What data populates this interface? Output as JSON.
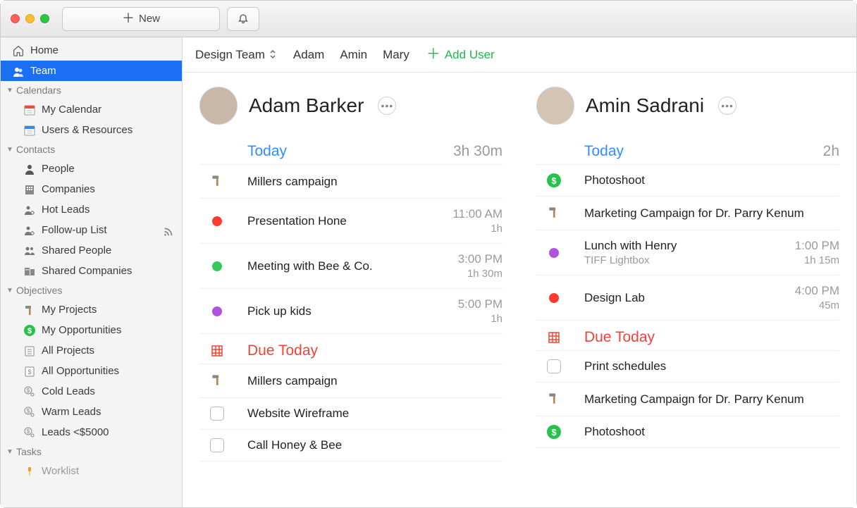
{
  "toolbar": {
    "new_label": "New",
    "bell_label": "Notifications"
  },
  "sidebar": {
    "home": "Home",
    "team": "Team",
    "groups": [
      {
        "label": "Calendars",
        "items": [
          {
            "icon": "calendar-red",
            "label": "My Calendar"
          },
          {
            "icon": "calendar-blue",
            "label": "Users & Resources"
          }
        ]
      },
      {
        "label": "Contacts",
        "items": [
          {
            "icon": "person-dark",
            "label": "People"
          },
          {
            "icon": "building",
            "label": "Companies"
          },
          {
            "icon": "person-gear",
            "label": "Hot Leads"
          },
          {
            "icon": "person-gear",
            "label": "Follow-up List",
            "trail": "rss"
          },
          {
            "icon": "people-share",
            "label": "Shared People"
          },
          {
            "icon": "building-share",
            "label": "Shared Companies"
          }
        ]
      },
      {
        "label": "Objectives",
        "items": [
          {
            "icon": "hammer",
            "label": "My Projects"
          },
          {
            "icon": "dollar-green",
            "label": "My Opportunities"
          },
          {
            "icon": "projects-list",
            "label": "All Projects"
          },
          {
            "icon": "opps-list",
            "label": "All Opportunities"
          },
          {
            "icon": "dollar-gear",
            "label": "Cold Leads"
          },
          {
            "icon": "dollar-gear",
            "label": "Warm Leads"
          },
          {
            "icon": "dollar-gear",
            "label": "Leads <$5000"
          }
        ]
      },
      {
        "label": "Tasks",
        "items": [
          {
            "icon": "pin",
            "label": "Worklist",
            "faded": true
          }
        ]
      }
    ]
  },
  "header": {
    "team_name": "Design Team",
    "tabs": [
      "Adam",
      "Amin",
      "Mary"
    ],
    "add_user": "Add User"
  },
  "columns": [
    {
      "name": "Adam Barker",
      "avatar_color": "#c9b8a8",
      "today_label": "Today",
      "today_total": "3h 30m",
      "today_items": [
        {
          "lead": "hammer",
          "title": "Millers campaign"
        },
        {
          "lead": "dot",
          "dot_color": "#ff3b30",
          "title": "Presentation Hone",
          "time": "11:00 AM",
          "dur": "1h"
        },
        {
          "lead": "dot",
          "dot_color": "#34c759",
          "title": "Meeting with Bee & Co.",
          "time": "3:00 PM",
          "dur": "1h 30m"
        },
        {
          "lead": "dot",
          "dot_color": "#af52de",
          "title": "Pick up kids",
          "time": "5:00 PM",
          "dur": "1h"
        }
      ],
      "due_label": "Due Today",
      "due_items": [
        {
          "lead": "hammer",
          "title": "Millers campaign"
        },
        {
          "lead": "checkbox",
          "title": "Website Wireframe"
        },
        {
          "lead": "checkbox",
          "title": "Call Honey & Bee"
        }
      ]
    },
    {
      "name": "Amin Sadrani",
      "avatar_color": "#d4c4b4",
      "today_label": "Today",
      "today_total": "2h",
      "today_items": [
        {
          "lead": "dollar",
          "title": "Photoshoot"
        },
        {
          "lead": "hammer",
          "title": "Marketing Campaign for Dr. Parry Kenum"
        },
        {
          "lead": "dot",
          "dot_color": "#af52de",
          "title": "Lunch with Henry",
          "sub": "TIFF Lightbox",
          "time": "1:00 PM",
          "dur": "1h 15m"
        },
        {
          "lead": "dot",
          "dot_color": "#ff3b30",
          "title": "Design Lab",
          "time": "4:00 PM",
          "dur": "45m"
        }
      ],
      "due_label": "Due Today",
      "due_items": [
        {
          "lead": "checkbox",
          "title": "Print schedules"
        },
        {
          "lead": "hammer",
          "title": "Marketing Campaign for Dr. Parry Kenum"
        },
        {
          "lead": "dollar",
          "title": "Photoshoot"
        }
      ]
    }
  ],
  "colors": {
    "accent_blue": "#1b6ff5",
    "link_blue": "#2f8fff",
    "danger_red": "#f04338",
    "green": "#1fb84a"
  }
}
